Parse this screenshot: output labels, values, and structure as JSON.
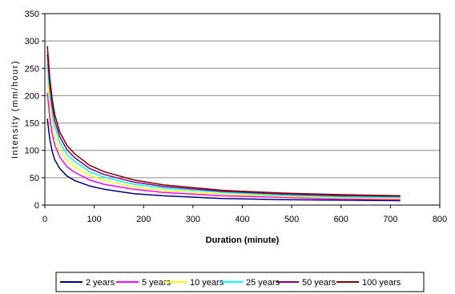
{
  "chart_data": {
    "type": "line",
    "title": "",
    "xlabel": "Duration (minute)",
    "ylabel": "Intensity (mm/hour)",
    "xlim": [
      0,
      800
    ],
    "ylim": [
      0,
      350
    ],
    "x_ticks": [
      0,
      100,
      200,
      300,
      400,
      500,
      600,
      700,
      800
    ],
    "y_ticks": [
      0,
      50,
      100,
      150,
      200,
      250,
      300,
      350
    ],
    "grid": "horizontal",
    "legend_position": "bottom",
    "x": [
      5,
      10,
      15,
      20,
      30,
      45,
      60,
      90,
      120,
      180,
      240,
      360,
      480,
      600,
      720
    ],
    "series": [
      {
        "name": "2 years",
        "color": "#000080",
        "values": [
          158,
          120,
          98,
          83,
          67,
          53,
          45,
          35,
          29,
          21,
          17,
          12,
          10,
          9,
          8
        ]
      },
      {
        "name": "5 years",
        "color": "#ff00ff",
        "values": [
          205,
          158,
          130,
          110,
          88,
          70,
          60,
          46,
          38,
          29,
          23,
          17,
          14,
          11,
          10
        ]
      },
      {
        "name": "10 years",
        "color": "#ffff00",
        "values": [
          236,
          183,
          150,
          128,
          102,
          81,
          70,
          54,
          45,
          33,
          27,
          20,
          16,
          13,
          12
        ]
      },
      {
        "name": "25 years",
        "color": "#00ffff",
        "values": [
          258,
          203,
          168,
          144,
          115,
          92,
          80,
          61,
          51,
          38,
          31,
          23,
          18,
          15,
          14
        ]
      },
      {
        "name": "50 years",
        "color": "#800080",
        "values": [
          276,
          218,
          181,
          155,
          125,
          101,
          87,
          67,
          56,
          42,
          34,
          25,
          20,
          17,
          16
        ]
      },
      {
        "name": "100 years",
        "color": "#800000",
        "values": [
          291,
          232,
          193,
          166,
          134,
          109,
          94,
          73,
          61,
          46,
          37,
          27,
          22,
          19,
          17
        ]
      }
    ]
  }
}
